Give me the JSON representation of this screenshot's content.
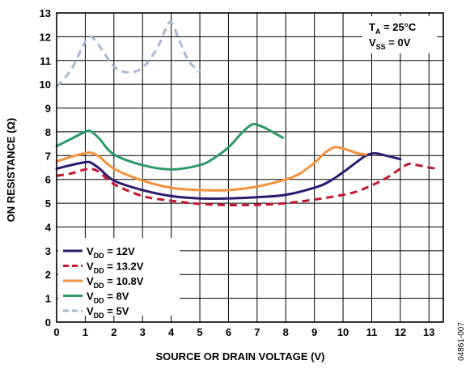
{
  "chart_data": {
    "type": "line",
    "xlabel": "SOURCE OR DRAIN VOLTAGE (V)",
    "ylabel": "ON RESISTANCE (Ω)",
    "xlim": [
      0,
      13.5
    ],
    "ylim": [
      0,
      13
    ],
    "xticks": [
      "0",
      "1",
      "2",
      "3",
      "4",
      "5",
      "6",
      "7",
      "8",
      "9",
      "10",
      "11",
      "12",
      "13"
    ],
    "yticks": [
      "0",
      "1",
      "2",
      "3",
      "4",
      "5",
      "6",
      "7",
      "8",
      "9",
      "10",
      "11",
      "12",
      "13"
    ],
    "grid": true,
    "legend_position": "bottom-left",
    "annotation": {
      "line1": {
        "base": "T",
        "sub": "A",
        "rest": " = 25°C"
      },
      "line2": {
        "base": "V",
        "sub": "SS",
        "rest": " = 0V"
      }
    },
    "figure_id": "04861-007",
    "series": [
      {
        "label": {
          "base": "V",
          "sub": "DD",
          "rest": " = 12V"
        },
        "color": "#2e1a6e",
        "dash": "solid",
        "x": [
          0,
          0.5,
          1.0,
          1.2,
          1.5,
          2.0,
          3.0,
          4.0,
          5.0,
          6.0,
          7.0,
          8.0,
          9.0,
          9.5,
          10.0,
          10.5,
          10.8,
          11.1,
          11.5,
          12.0
        ],
        "y": [
          6.45,
          6.6,
          6.72,
          6.7,
          6.45,
          5.95,
          5.55,
          5.3,
          5.2,
          5.2,
          5.25,
          5.35,
          5.65,
          5.9,
          6.3,
          6.75,
          7.0,
          7.1,
          7.0,
          6.85
        ]
      },
      {
        "label": {
          "base": "V",
          "sub": "DD",
          "rest": " = 13.2V"
        },
        "color": "#c0182e",
        "dash": "dashed",
        "x": [
          0,
          0.5,
          1.0,
          1.2,
          1.5,
          2.0,
          3.0,
          4.0,
          5.0,
          6.0,
          7.0,
          8.0,
          9.0,
          10.0,
          10.5,
          11.0,
          11.5,
          12.0,
          12.3,
          12.6,
          13.0,
          13.3
        ],
        "y": [
          6.15,
          6.25,
          6.42,
          6.45,
          6.3,
          5.8,
          5.3,
          5.1,
          4.97,
          4.92,
          4.93,
          5.0,
          5.15,
          5.35,
          5.5,
          5.75,
          6.05,
          6.45,
          6.65,
          6.6,
          6.5,
          6.45
        ]
      },
      {
        "label": {
          "base": "V",
          "sub": "DD",
          "rest": " = 10.8V"
        },
        "color": "#f5923e",
        "dash": "solid",
        "x": [
          0,
          0.5,
          1.0,
          1.2,
          1.5,
          2.0,
          3.0,
          4.0,
          5.0,
          6.0,
          7.0,
          8.0,
          8.5,
          9.0,
          9.4,
          9.7,
          10.0,
          10.5,
          10.8
        ],
        "y": [
          6.75,
          6.95,
          7.1,
          7.12,
          6.95,
          6.45,
          5.95,
          5.65,
          5.55,
          5.55,
          5.7,
          6.0,
          6.25,
          6.7,
          7.15,
          7.35,
          7.3,
          7.1,
          7.05
        ]
      },
      {
        "label": {
          "base": "V",
          "sub": "DD",
          "rest": " = 8V"
        },
        "color": "#2e9a6a",
        "dash": "solid",
        "x": [
          0,
          0.5,
          1.0,
          1.2,
          1.5,
          2.0,
          3.0,
          4.0,
          5.0,
          5.5,
          6.0,
          6.5,
          6.8,
          7.0,
          7.3,
          7.6,
          7.9
        ],
        "y": [
          7.4,
          7.7,
          8.0,
          8.02,
          7.7,
          7.05,
          6.6,
          6.42,
          6.6,
          6.9,
          7.35,
          8.0,
          8.3,
          8.3,
          8.15,
          7.95,
          7.75
        ]
      },
      {
        "label": {
          "base": "V",
          "sub": "DD",
          "rest": " = 5V"
        },
        "color": "#a8b8d0",
        "dash": "dashed",
        "x": [
          0,
          0.5,
          1.0,
          1.2,
          1.5,
          2.0,
          2.5,
          3.0,
          3.5,
          3.8,
          4.0,
          4.3,
          4.6,
          5.0
        ],
        "y": [
          9.9,
          10.6,
          11.8,
          12.0,
          11.6,
          10.75,
          10.5,
          10.7,
          11.5,
          12.3,
          12.6,
          11.8,
          11.0,
          10.5
        ]
      }
    ]
  }
}
